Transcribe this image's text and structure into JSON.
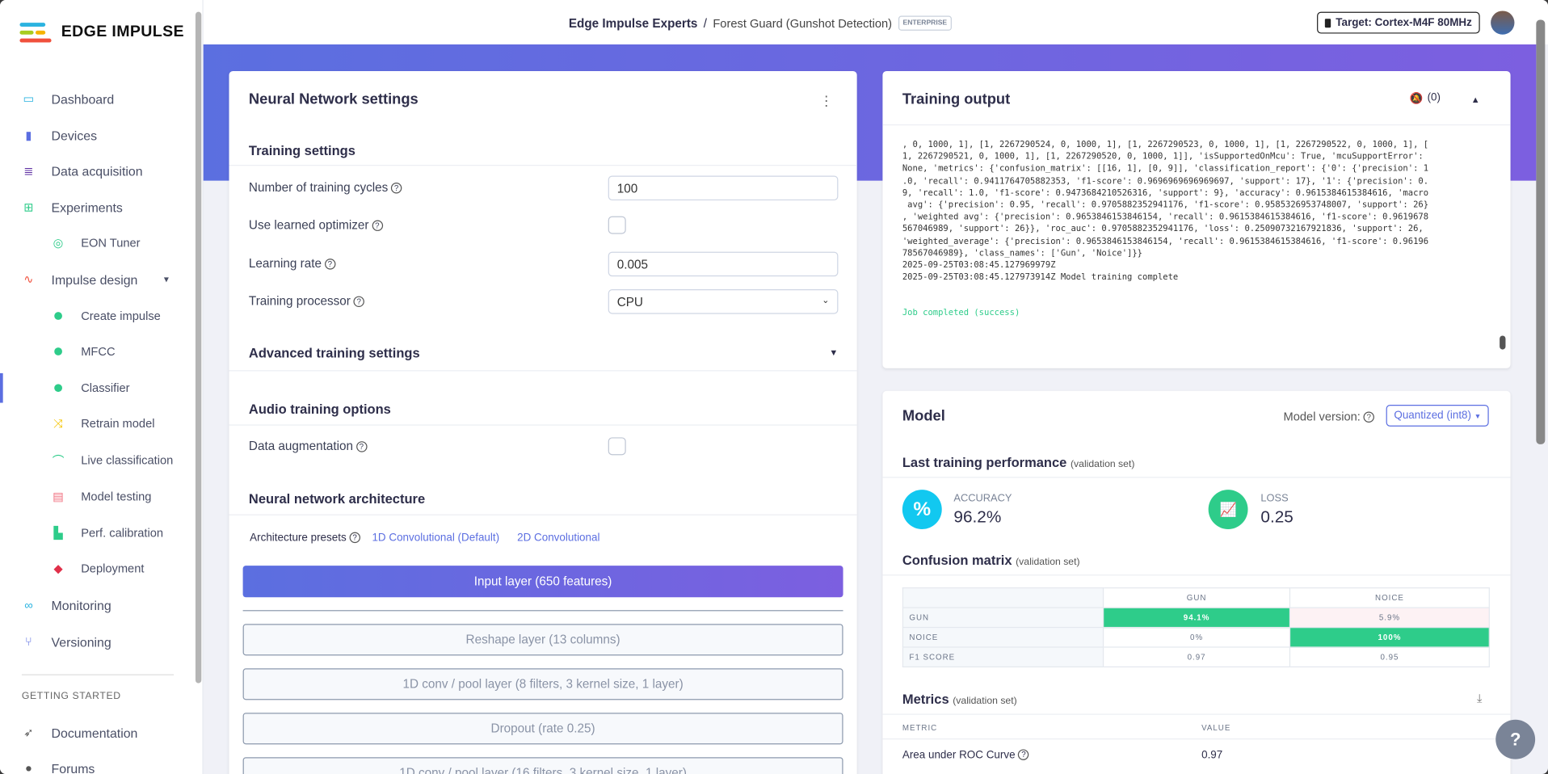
{
  "brand": {
    "name": "EDGE IMPULSE"
  },
  "sidebar": {
    "items": [
      {
        "label": "Dashboard",
        "icon": "monitor-icon",
        "color": "#2bb3e0"
      },
      {
        "label": "Devices",
        "icon": "chip-icon",
        "color": "#5b6ee1"
      },
      {
        "label": "Data acquisition",
        "icon": "database-icon",
        "color": "#5a2aa0"
      },
      {
        "label": "Experiments",
        "icon": "grid-icon",
        "color": "#2ecc8a"
      },
      {
        "label": "EON Tuner",
        "icon": "compass-icon",
        "color": "#2ecc8a"
      },
      {
        "label": "Impulse design",
        "icon": "pulse-icon",
        "color": "#f0503c"
      },
      {
        "label": "Create impulse",
        "icon": "dot-icon"
      },
      {
        "label": "MFCC",
        "icon": "dot-icon"
      },
      {
        "label": "Classifier",
        "icon": "dot-icon"
      },
      {
        "label": "Retrain model",
        "icon": "shuffle-icon",
        "color": "#f5c400"
      },
      {
        "label": "Live classification",
        "icon": "graph-icon",
        "color": "#2ecc8a"
      },
      {
        "label": "Model testing",
        "icon": "clipboard-icon",
        "color": "#f07080"
      },
      {
        "label": "Perf. calibration",
        "icon": "factory-icon",
        "color": "#2ecc8a"
      },
      {
        "label": "Deployment",
        "icon": "cube-icon",
        "color": "#e0304a"
      },
      {
        "label": "Monitoring",
        "icon": "binoculars-icon",
        "color": "#2bb3e0"
      },
      {
        "label": "Versioning",
        "icon": "branch-icon",
        "color": "#5b6ee1"
      },
      {
        "label": "Documentation",
        "icon": "rocket-icon",
        "color": "#555"
      },
      {
        "label": "Forums",
        "icon": "chat-icon",
        "color": "#555"
      }
    ],
    "section": "GETTING STARTED"
  },
  "header": {
    "org": "Edge Impulse Experts",
    "separator": "/",
    "project": "Forest Guard (Gunshot Detection)",
    "badge": "ENTERPRISE",
    "target": "Target: Cortex-M4F 80MHz"
  },
  "nn": {
    "title": "Neural Network settings",
    "training_settings": "Training settings",
    "cycles_label": "Number of training cycles",
    "cycles": "100",
    "optimizer_label": "Use learned optimizer",
    "lr_label": "Learning rate",
    "lr": "0.005",
    "processor_label": "Training processor",
    "processor": "CPU",
    "advanced": "Advanced training settings",
    "audio": "Audio training options",
    "augmentation_label": "Data augmentation",
    "arch": "Neural network architecture",
    "presets_label": "Architecture presets",
    "preset1": "1D Convolutional (Default)",
    "preset2": "2D Convolutional",
    "input_layer": "Input layer (650 features)",
    "layers": [
      "Reshape layer (13 columns)",
      "1D conv / pool layer (8 filters, 3 kernel size, 1 layer)",
      "Dropout (rate 0.25)",
      "1D conv / pool layer (16 filters, 3 kernel size, 1 layer)"
    ]
  },
  "output": {
    "title": "Training output",
    "notifications": "(0)",
    "lines": [
      ", 0, 1000, 1], [1, 2267290524, 0, 1000, 1], [1, 2267290523, 0, 1000, 1], [1, 2267290522, 0, 1000, 1], [",
      "1, 2267290521, 0, 1000, 1], [1, 2267290520, 0, 1000, 1]], 'isSupportedOnMcu': True, 'mcuSupportError':",
      "None, 'metrics': {'confusion_matrix': [[16, 1], [0, 9]], 'classification_report': {'0': {'precision': 1",
      ".0, 'recall': 0.9411764705882353, 'f1-score': 0.9696969696969697, 'support': 17}, '1': {'precision': 0.",
      "9, 'recall': 1.0, 'f1-score': 0.9473684210526316, 'support': 9}, 'accuracy': 0.9615384615384616, 'macro",
      " avg': {'precision': 0.95, 'recall': 0.9705882352941176, 'f1-score': 0.9585326953748007, 'support': 26}",
      ", 'weighted avg': {'precision': 0.9653846153846154, 'recall': 0.9615384615384616, 'f1-score': 0.9619678",
      "567046989, 'support': 26}}, 'roc_auc': 0.9705882352941176, 'loss': 0.25090732167921836, 'support': 26,",
      "'weighted_average': {'precision': 0.9653846153846154, 'recall': 0.9615384615384616, 'f1-score': 0.96196",
      "78567046989}, 'class_names': ['Gun', 'Noice']}}",
      "2025-09-25T03:08:45.127969979Z",
      "2025-09-25T03:08:45.127973914Z Model training complete"
    ],
    "status": "Job completed (success)"
  },
  "model": {
    "title": "Model",
    "version_label": "Model version:",
    "version": "Quantized (int8)",
    "perf": "Last training performance",
    "perf_sub": "(validation set)",
    "accuracy_label": "ACCURACY",
    "accuracy": "96.2%",
    "loss_label": "LOSS",
    "loss": "0.25",
    "cm_title": "Confusion matrix",
    "cm_sub": "(validation set)",
    "cm": {
      "cols": [
        "GUN",
        "NOICE"
      ],
      "rows": [
        {
          "label": "GUN",
          "values": [
            "94.1%",
            "5.9%"
          ]
        },
        {
          "label": "NOICE",
          "values": [
            "0%",
            "100%"
          ]
        },
        {
          "label": "F1 SCORE",
          "values": [
            "0.97",
            "0.95"
          ]
        }
      ]
    },
    "metrics_title": "Metrics",
    "metrics_sub": "(validation set)",
    "metrics_cols": [
      "METRIC",
      "VALUE"
    ],
    "metrics": [
      {
        "name": "Area under ROC Curve",
        "value": "0.97"
      }
    ]
  },
  "colors": {
    "accent": "#5b6ee1",
    "success": "#2ecc8a",
    "accuracy": "#12c8f0"
  }
}
